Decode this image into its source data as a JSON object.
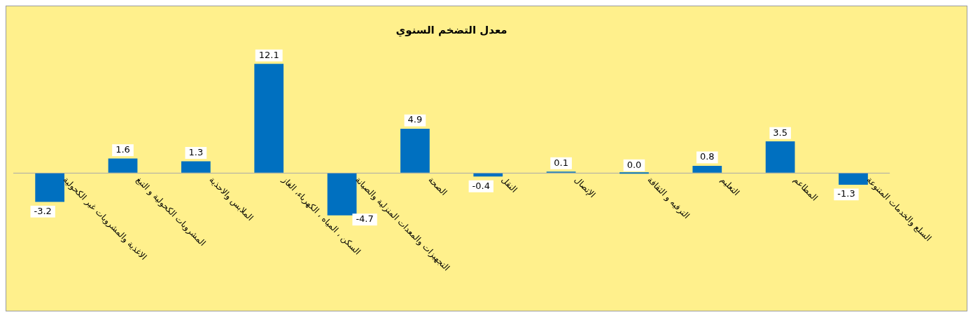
{
  "chart_data": {
    "type": "bar",
    "title": "معدل التضخم السنوي",
    "categories": [
      "الاغذية والمشروبات غير الكحولية",
      "المشروبات الكحولية و التبغ",
      "الملابس والاحذية",
      "السكن ، المياه ، الكهرباء، الغاز",
      "التجهيزات والمعدات المنزلية والصيانة",
      "الصحة",
      "النقل",
      "الإتصال",
      "الترفيه و الثقافة",
      "التعليم",
      "المطاعم",
      "السلع والخدمات المتنوعة"
    ],
    "values": [
      -3.2,
      1.6,
      1.3,
      12.1,
      -4.7,
      4.9,
      -0.4,
      0.1,
      0.0,
      0.8,
      3.5,
      -1.3
    ],
    "value_labels": [
      "-3.2",
      "1.6",
      "1.3",
      "12.1",
      "-4.7",
      "4.9",
      "-0.4",
      "0.1",
      "0.0",
      "0.8",
      "3.5",
      "-1.3"
    ],
    "color": "#0070c0",
    "grid": false,
    "legend": false
  }
}
